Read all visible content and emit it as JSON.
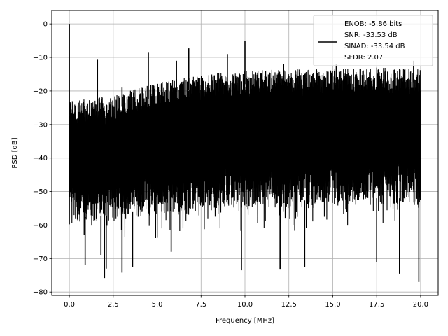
{
  "chart_data": {
    "type": "line",
    "title": "",
    "xlabel": "Frequency [MHz]",
    "ylabel": "PSD [dB]",
    "xlim": [
      -1.0,
      21.0
    ],
    "ylim": [
      -81.0,
      4.0
    ],
    "xticks": [
      0.0,
      2.5,
      5.0,
      7.5,
      10.0,
      12.5,
      15.0,
      17.5,
      20.0
    ],
    "xtick_labels": [
      "0.0",
      "2.5",
      "5.0",
      "7.5",
      "10.0",
      "12.5",
      "15.0",
      "17.5",
      "20.0"
    ],
    "yticks": [
      0,
      -10,
      -20,
      -30,
      -40,
      -50,
      -60,
      -70,
      -80
    ],
    "ytick_labels": [
      "0",
      "−10",
      "−20",
      "−30",
      "−40",
      "−50",
      "−60",
      "−70",
      "−80"
    ],
    "grid": true,
    "legend_position": "top-right",
    "legend": [
      "ENOB: -5.86 bits",
      "SNR: -33.53 dB",
      "SINAD: -33.54 dB",
      "SFDR: 2.07"
    ],
    "series": [
      {
        "color": "#000000",
        "description_of_shape": "dense noise floor between approximately -60 and -20 dB, upper envelope rising from about -23 dB at 0 MHz to about -13 dB near 20 MHz",
        "upper_envelope": {
          "x": [
            0.0,
            2.5,
            5.0,
            7.5,
            10.0,
            12.5,
            15.0,
            17.5,
            20.0
          ],
          "y": [
            -23,
            -21.5,
            -17.5,
            -15,
            -14,
            -13.5,
            -13.5,
            -13,
            -13.5
          ]
        },
        "lower_envelope": {
          "x": [
            0.0,
            2.5,
            5.0,
            7.5,
            10.0,
            12.5,
            15.0,
            17.5,
            20.0
          ],
          "y": [
            -60,
            -59,
            -57,
            -56,
            -55,
            -55,
            -54,
            -54,
            -54
          ]
        },
        "peaks": [
          {
            "x": 0.0,
            "y": 0.0
          },
          {
            "x": 1.6,
            "y": -10.7
          },
          {
            "x": 3.0,
            "y": -19.0
          },
          {
            "x": 4.5,
            "y": -8.6
          },
          {
            "x": 6.1,
            "y": -11.0
          },
          {
            "x": 6.8,
            "y": -7.3
          },
          {
            "x": 9.0,
            "y": -9.0
          },
          {
            "x": 10.0,
            "y": -5.1
          },
          {
            "x": 12.2,
            "y": -12.0
          },
          {
            "x": 15.2,
            "y": -12.0
          },
          {
            "x": 19.6,
            "y": -11.0
          }
        ],
        "dips": [
          {
            "x": 0.9,
            "y": -72.0
          },
          {
            "x": 1.8,
            "y": -69.0
          },
          {
            "x": 2.0,
            "y": -75.8
          },
          {
            "x": 2.1,
            "y": -73.0
          },
          {
            "x": 3.0,
            "y": -74.2
          },
          {
            "x": 3.6,
            "y": -72.5
          },
          {
            "x": 5.8,
            "y": -68.0
          },
          {
            "x": 9.8,
            "y": -73.5
          },
          {
            "x": 12.0,
            "y": -73.3
          },
          {
            "x": 13.4,
            "y": -72.5
          },
          {
            "x": 17.5,
            "y": -71.0
          },
          {
            "x": 18.8,
            "y": -74.5
          },
          {
            "x": 19.9,
            "y": -77.0
          }
        ]
      }
    ]
  }
}
